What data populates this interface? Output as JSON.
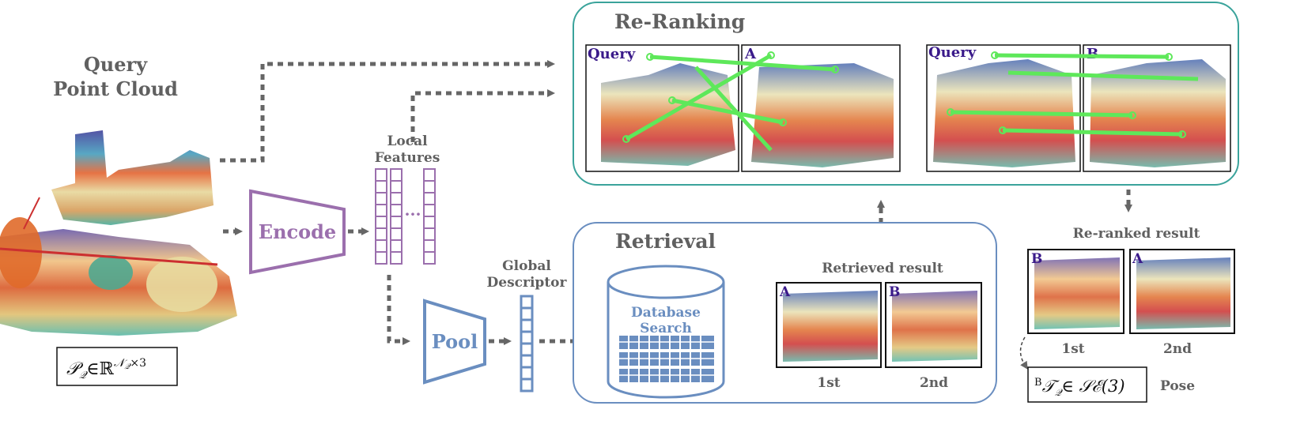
{
  "query_title_line1": "Query",
  "query_title_line2": "Point Cloud",
  "query_formula": {
    "main": "𝒫",
    "sub": "𝒬",
    "rel": "∈ℝ",
    "sup": "𝒩",
    "sup_sub": "𝒬",
    "sup_tail": "×3"
  },
  "encode_label": "Encode",
  "pool_label": "Pool",
  "local_features_line1": "Local",
  "local_features_line2": "Features",
  "local_features_ellipsis": "···",
  "global_descriptor_line1": "Global",
  "global_descriptor_line2": "Descriptor",
  "reranking_title": "Re-Ranking",
  "retrieval_title": "Retrieval",
  "database_line1": "Database",
  "database_line2": "Search",
  "retrieved_result_label": "Retrieved result",
  "reranked_result_label": "Re-ranked result",
  "match_query_label_1": "Query",
  "match_a_label": "A",
  "match_query_label_2": "Query",
  "match_b_label": "B",
  "retrieved": [
    {
      "label": "A",
      "rank": "1st"
    },
    {
      "label": "B",
      "rank": "2nd"
    }
  ],
  "reranked": [
    {
      "label": "B",
      "rank": "1st"
    },
    {
      "label": "A",
      "rank": "2nd"
    }
  ],
  "pose_formula": {
    "sup": "B",
    "main": "𝒯",
    "sub": "𝒬",
    "rel": "∈ 𝒮ℰ(3)"
  },
  "pose_label": "Pose",
  "colors": {
    "purple": "#9b6fad",
    "blue": "#6a8ec0",
    "teal": "#3aa39b",
    "gray_arrow": "#666666",
    "match_line": "#5ee85a",
    "label_dark": "#3a1a8a"
  },
  "icons": {
    "arrow": "dotted-arrow",
    "database": "cylinder-database-icon"
  }
}
